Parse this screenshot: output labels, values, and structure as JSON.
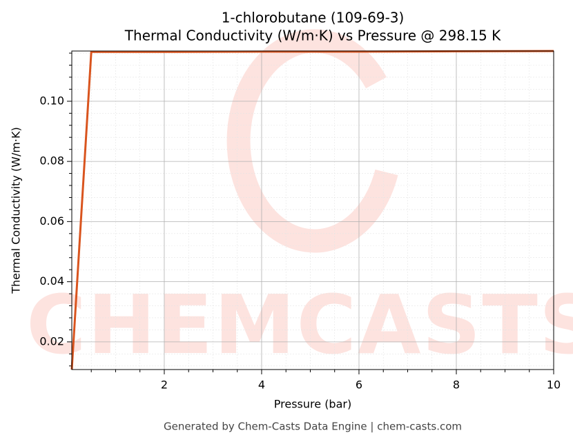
{
  "chart_data": {
    "type": "line",
    "title": "1-chlorobutane (109-69-3)",
    "subtitle": "Thermal Conductivity (W/m·K) vs Pressure @ 298.15 K",
    "x_label": "Pressure (bar)",
    "y_label": "Thermal Conductivity (W/m·K)",
    "footer": "Generated by Chem-Casts Data Engine | chem-casts.com",
    "watermark": "CHEMCASTS",
    "x": [
      0.1,
      0.5,
      1,
      2,
      4,
      6,
      8,
      10
    ],
    "values": [
      0.0108,
      0.1164,
      0.1164,
      0.1164,
      0.1165,
      0.1165,
      0.1166,
      0.1167
    ],
    "color": "#d9541e",
    "xlim": [
      0.1,
      10
    ],
    "ylim": [
      0.0108,
      0.1167
    ],
    "xticks": [
      2,
      4,
      6,
      8,
      10
    ],
    "yticks": [
      0.02,
      0.04,
      0.06,
      0.08,
      {
        "value": 0.1,
        "label": "0.10"
      }
    ],
    "xminorticks": [
      0.5,
      1,
      1.5,
      2.5,
      3,
      3.5,
      4.5,
      5,
      5.5,
      6.5,
      7,
      7.5,
      8.5,
      9,
      9.5
    ],
    "yminorticks": [
      0.012,
      0.016,
      0.024,
      0.028,
      0.032,
      0.036,
      0.044,
      0.048,
      0.052,
      0.056,
      0.064,
      0.068,
      0.072,
      0.076,
      0.084,
      0.088,
      0.092,
      0.096,
      0.104,
      0.108,
      0.112,
      0.116
    ],
    "grid": true
  }
}
